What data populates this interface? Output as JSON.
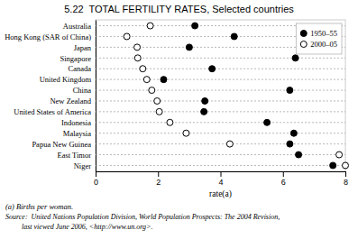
{
  "chart_data": {
    "type": "dot",
    "orientation": "horizontal",
    "title": "5.22  TOTAL FERTILITY RATES, Selected countries",
    "categories": [
      "Australia",
      "Hong Kong (SAR of China)",
      "Japan",
      "Singapore",
      "Canada",
      "United Kingdom",
      "China",
      "New Zealand",
      "United States of America",
      "Indonesia",
      "Malaysia",
      "Papua New Guinea",
      "East Timor",
      "Niger"
    ],
    "series": [
      {
        "name": "1950–55",
        "color": "#000000",
        "marker": "circle",
        "values": [
          3.18,
          4.44,
          3.0,
          6.4,
          3.73,
          2.18,
          6.22,
          3.5,
          3.47,
          5.49,
          6.35,
          6.22,
          6.5,
          7.6
        ]
      },
      {
        "name": "2000–05",
        "color": "#000000",
        "marker": "open-circle",
        "values": [
          1.75,
          1.0,
          1.33,
          1.35,
          1.51,
          1.64,
          1.8,
          1.97,
          2.04,
          2.38,
          2.9,
          4.3,
          7.8,
          8.0
        ]
      }
    ],
    "x_label": "rate(a)",
    "xlim": [
      0,
      8
    ],
    "xticks": [
      0,
      2,
      4,
      6,
      8
    ],
    "grid": true,
    "legend": "upper right",
    "annotations": [
      "(a) Births per woman.",
      "Source:  United Nations Population Division, World Population Prospects: The 2004 Revision,",
      "         last viewed June 2006, <http://www.un.org>."
    ]
  }
}
